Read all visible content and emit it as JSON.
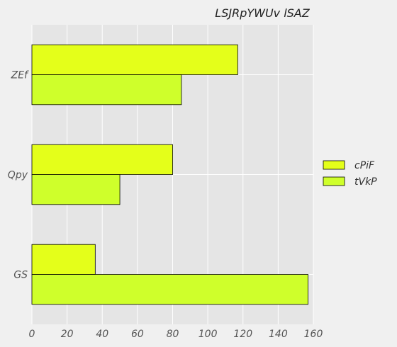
{
  "chart_data": {
    "type": "bar",
    "orientation": "horizontal",
    "title": "LSJRpYWUv lSAZ",
    "xlabel": "",
    "ylabel": "",
    "categories": [
      "ZEf",
      "Qpy",
      "GS"
    ],
    "series": [
      {
        "name": "cPiF",
        "values": [
          117,
          80,
          36
        ],
        "color": "#e4ff1a"
      },
      {
        "name": "tVkP",
        "values": [
          85,
          50,
          157
        ],
        "color": "#cfff2b"
      }
    ],
    "xlim": [
      0,
      160
    ],
    "xticks": [
      0,
      20,
      40,
      60,
      80,
      100,
      120,
      140,
      160
    ],
    "xtick_labels": [
      "0",
      "20",
      "40",
      "60",
      "80",
      "100",
      "120",
      "140",
      "160"
    ],
    "grid": true,
    "legend_position": "center-right",
    "plot_background": "#e5e5e5"
  }
}
